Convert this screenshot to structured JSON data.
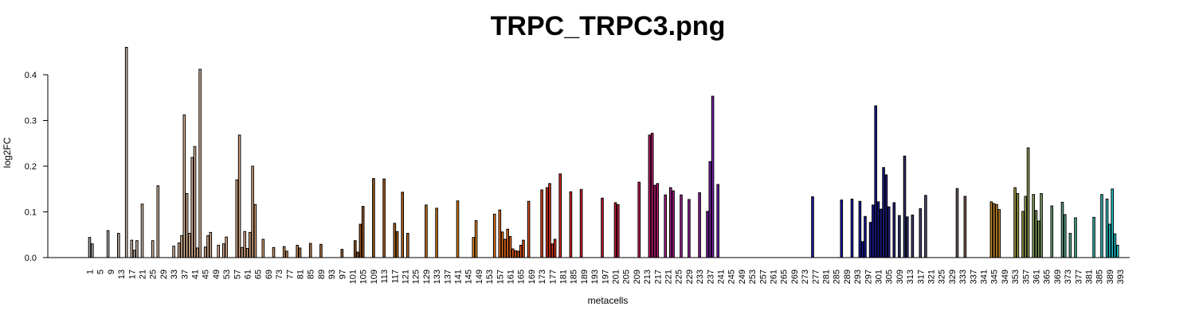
{
  "chart_data": {
    "type": "bar",
    "title": "TRPC_TRPC3.png",
    "xlabel": "metacells",
    "ylabel": "log2FC",
    "ylim": [
      0,
      0.46
    ],
    "yticks": [
      0.0,
      0.1,
      0.2,
      0.3,
      0.4
    ],
    "ytick_labels": [
      "0.0",
      "0.1",
      "0.2",
      "0.3",
      "0.4"
    ],
    "n_bars": 395,
    "xtick_labels": [
      "1",
      "5",
      "9",
      "13",
      "17",
      "21",
      "25",
      "29",
      "33",
      "37",
      "41",
      "45",
      "49",
      "53",
      "57",
      "61",
      "65",
      "69",
      "73",
      "77",
      "81",
      "85",
      "89",
      "93",
      "97",
      "101",
      "105",
      "109",
      "113",
      "117",
      "121",
      "125",
      "129",
      "133",
      "137",
      "141",
      "145",
      "149",
      "153",
      "157",
      "161",
      "165",
      "169",
      "173",
      "177",
      "181",
      "185",
      "189",
      "193",
      "197",
      "201",
      "205",
      "209",
      "213",
      "217",
      "221",
      "225",
      "229",
      "233",
      "237",
      "241",
      "245",
      "249",
      "253",
      "257",
      "261",
      "265",
      "269",
      "273",
      "277",
      "281",
      "285",
      "289",
      "293",
      "297",
      "301",
      "305",
      "309",
      "313",
      "317",
      "321",
      "325",
      "329",
      "333",
      "337",
      "341",
      "345",
      "349",
      "353",
      "357",
      "361",
      "365",
      "369",
      "373",
      "377",
      "381",
      "385",
      "389",
      "393"
    ],
    "grid": false,
    "legend": "none",
    "bars": [
      {
        "x": 1,
        "value": 0.044,
        "color": "#a8a8a8"
      },
      {
        "x": 2,
        "value": 0.03,
        "color": "#a8a8a8"
      },
      {
        "x": 8,
        "value": 0.059,
        "color": "#b0aaa8"
      },
      {
        "x": 12,
        "value": 0.053,
        "color": "#b8aca4"
      },
      {
        "x": 15,
        "value": 0.46,
        "color": "#c8b8aa"
      },
      {
        "x": 17,
        "value": 0.038,
        "color": "#ccb8a8"
      },
      {
        "x": 18,
        "value": 0.016,
        "color": "#ccb8a8"
      },
      {
        "x": 19,
        "value": 0.037,
        "color": "#ccb8a8"
      },
      {
        "x": 21,
        "value": 0.117,
        "color": "#d0b8a0"
      },
      {
        "x": 25,
        "value": 0.037,
        "color": "#d4b8a0"
      },
      {
        "x": 27,
        "value": 0.157,
        "color": "#d8b8a0"
      },
      {
        "x": 33,
        "value": 0.025,
        "color": "#dcb89c"
      },
      {
        "x": 35,
        "value": 0.032,
        "color": "#deb898"
      },
      {
        "x": 36,
        "value": 0.048,
        "color": "#deb898"
      },
      {
        "x": 37,
        "value": 0.312,
        "color": "#deb898"
      },
      {
        "x": 38,
        "value": 0.14,
        "color": "#deb898"
      },
      {
        "x": 39,
        "value": 0.053,
        "color": "#deb898"
      },
      {
        "x": 40,
        "value": 0.219,
        "color": "#deb494"
      },
      {
        "x": 41,
        "value": 0.243,
        "color": "#deb494"
      },
      {
        "x": 42,
        "value": 0.021,
        "color": "#deb494"
      },
      {
        "x": 43,
        "value": 0.412,
        "color": "#deb494"
      },
      {
        "x": 45,
        "value": 0.023,
        "color": "#deb494"
      },
      {
        "x": 46,
        "value": 0.048,
        "color": "#deb494"
      },
      {
        "x": 47,
        "value": 0.055,
        "color": "#deb494"
      },
      {
        "x": 50,
        "value": 0.027,
        "color": "#deb090"
      },
      {
        "x": 52,
        "value": 0.03,
        "color": "#deb090"
      },
      {
        "x": 53,
        "value": 0.045,
        "color": "#deb090"
      },
      {
        "x": 57,
        "value": 0.17,
        "color": "#dcaa88"
      },
      {
        "x": 58,
        "value": 0.268,
        "color": "#dcaa88"
      },
      {
        "x": 59,
        "value": 0.022,
        "color": "#dcaa88"
      },
      {
        "x": 60,
        "value": 0.057,
        "color": "#dcaa88"
      },
      {
        "x": 61,
        "value": 0.02,
        "color": "#dcaa88"
      },
      {
        "x": 62,
        "value": 0.055,
        "color": "#dcaa88"
      },
      {
        "x": 63,
        "value": 0.2,
        "color": "#d8a47e"
      },
      {
        "x": 64,
        "value": 0.116,
        "color": "#d8a47e"
      },
      {
        "x": 67,
        "value": 0.04,
        "color": "#d4a076"
      },
      {
        "x": 71,
        "value": 0.022,
        "color": "#cc9466"
      },
      {
        "x": 75,
        "value": 0.024,
        "color": "#c88e5e"
      },
      {
        "x": 76,
        "value": 0.014,
        "color": "#c88e5e"
      },
      {
        "x": 80,
        "value": 0.027,
        "color": "#c08656"
      },
      {
        "x": 81,
        "value": 0.021,
        "color": "#c08656"
      },
      {
        "x": 85,
        "value": 0.031,
        "color": "#b87a48"
      },
      {
        "x": 89,
        "value": 0.029,
        "color": "#b07040"
      },
      {
        "x": 97,
        "value": 0.018,
        "color": "#a06030"
      },
      {
        "x": 102,
        "value": 0.037,
        "color": "#98541e"
      },
      {
        "x": 103,
        "value": 0.012,
        "color": "#98541e"
      },
      {
        "x": 104,
        "value": 0.073,
        "color": "#98541e"
      },
      {
        "x": 105,
        "value": 0.112,
        "color": "#98541e"
      },
      {
        "x": 109,
        "value": 0.173,
        "color": "#a05a1e"
      },
      {
        "x": 113,
        "value": 0.172,
        "color": "#a85e1c"
      },
      {
        "x": 117,
        "value": 0.075,
        "color": "#b0641c"
      },
      {
        "x": 118,
        "value": 0.057,
        "color": "#b0641c"
      },
      {
        "x": 120,
        "value": 0.143,
        "color": "#b4661c"
      },
      {
        "x": 122,
        "value": 0.053,
        "color": "#b8681c"
      },
      {
        "x": 129,
        "value": 0.115,
        "color": "#c4721c"
      },
      {
        "x": 133,
        "value": 0.108,
        "color": "#cc781a"
      },
      {
        "x": 141,
        "value": 0.124,
        "color": "#d8801a"
      },
      {
        "x": 147,
        "value": 0.044,
        "color": "#e4881a"
      },
      {
        "x": 148,
        "value": 0.081,
        "color": "#e4881a"
      },
      {
        "x": 155,
        "value": 0.095,
        "color": "#e8761c"
      },
      {
        "x": 157,
        "value": 0.104,
        "color": "#e8701c"
      },
      {
        "x": 158,
        "value": 0.056,
        "color": "#e8701c"
      },
      {
        "x": 159,
        "value": 0.04,
        "color": "#e86a1c"
      },
      {
        "x": 160,
        "value": 0.062,
        "color": "#e86a1c"
      },
      {
        "x": 161,
        "value": 0.046,
        "color": "#e8641c"
      },
      {
        "x": 162,
        "value": 0.019,
        "color": "#e8641c"
      },
      {
        "x": 163,
        "value": 0.015,
        "color": "#e45e1c"
      },
      {
        "x": 164,
        "value": 0.014,
        "color": "#e45e1c"
      },
      {
        "x": 165,
        "value": 0.027,
        "color": "#e4581c"
      },
      {
        "x": 166,
        "value": 0.038,
        "color": "#e4581c"
      },
      {
        "x": 168,
        "value": 0.123,
        "color": "#e0521c"
      },
      {
        "x": 173,
        "value": 0.148,
        "color": "#e0401c"
      },
      {
        "x": 175,
        "value": 0.153,
        "color": "#e0381c"
      },
      {
        "x": 176,
        "value": 0.162,
        "color": "#e0381c"
      },
      {
        "x": 177,
        "value": 0.03,
        "color": "#e0321c"
      },
      {
        "x": 178,
        "value": 0.04,
        "color": "#e0321c"
      },
      {
        "x": 180,
        "value": 0.183,
        "color": "#dc2a1c"
      },
      {
        "x": 184,
        "value": 0.144,
        "color": "#d82420"
      },
      {
        "x": 188,
        "value": 0.149,
        "color": "#d41e24"
      },
      {
        "x": 196,
        "value": 0.13,
        "color": "#cc1a2c"
      },
      {
        "x": 201,
        "value": 0.12,
        "color": "#c41a38"
      },
      {
        "x": 202,
        "value": 0.116,
        "color": "#c41a38"
      },
      {
        "x": 210,
        "value": 0.165,
        "color": "#c01a50"
      },
      {
        "x": 214,
        "value": 0.268,
        "color": "#b81a68"
      },
      {
        "x": 215,
        "value": 0.272,
        "color": "#b81a68"
      },
      {
        "x": 216,
        "value": 0.158,
        "color": "#b41a70"
      },
      {
        "x": 217,
        "value": 0.162,
        "color": "#b41a70"
      },
      {
        "x": 220,
        "value": 0.137,
        "color": "#a81a80"
      },
      {
        "x": 222,
        "value": 0.153,
        "color": "#a01c88"
      },
      {
        "x": 223,
        "value": 0.146,
        "color": "#a01c88"
      },
      {
        "x": 226,
        "value": 0.137,
        "color": "#981e90"
      },
      {
        "x": 229,
        "value": 0.127,
        "color": "#901e98"
      },
      {
        "x": 233,
        "value": 0.142,
        "color": "#8820a0"
      },
      {
        "x": 236,
        "value": 0.101,
        "color": "#7e20a8"
      },
      {
        "x": 237,
        "value": 0.21,
        "color": "#7e20a8"
      },
      {
        "x": 238,
        "value": 0.353,
        "color": "#7a20b0"
      },
      {
        "x": 240,
        "value": 0.16,
        "color": "#7420b8"
      },
      {
        "x": 276,
        "value": 0.133,
        "color": "#1c20b0"
      },
      {
        "x": 287,
        "value": 0.126,
        "color": "#1818a8"
      },
      {
        "x": 291,
        "value": 0.128,
        "color": "#1818a8"
      },
      {
        "x": 294,
        "value": 0.123,
        "color": "#1818a0"
      },
      {
        "x": 295,
        "value": 0.035,
        "color": "#1818a0"
      },
      {
        "x": 296,
        "value": 0.09,
        "color": "#1818a0"
      },
      {
        "x": 298,
        "value": 0.077,
        "color": "#181898"
      },
      {
        "x": 299,
        "value": 0.115,
        "color": "#181898"
      },
      {
        "x": 300,
        "value": 0.332,
        "color": "#1a1a90"
      },
      {
        "x": 301,
        "value": 0.122,
        "color": "#1a1a90"
      },
      {
        "x": 302,
        "value": 0.106,
        "color": "#1c1c88"
      },
      {
        "x": 303,
        "value": 0.197,
        "color": "#1c1c88"
      },
      {
        "x": 304,
        "value": 0.181,
        "color": "#1e1e80"
      },
      {
        "x": 305,
        "value": 0.111,
        "color": "#1e1e80"
      },
      {
        "x": 307,
        "value": 0.12,
        "color": "#22227a"
      },
      {
        "x": 309,
        "value": 0.092,
        "color": "#282874"
      },
      {
        "x": 311,
        "value": 0.222,
        "color": "#30306e"
      },
      {
        "x": 312,
        "value": 0.089,
        "color": "#303070"
      },
      {
        "x": 314,
        "value": 0.093,
        "color": "#383870"
      },
      {
        "x": 317,
        "value": 0.107,
        "color": "#444470"
      },
      {
        "x": 319,
        "value": 0.136,
        "color": "#504c6c"
      },
      {
        "x": 331,
        "value": 0.151,
        "color": "#706060"
      },
      {
        "x": 334,
        "value": 0.134,
        "color": "#806050"
      },
      {
        "x": 344,
        "value": 0.122,
        "color": "#c88a28"
      },
      {
        "x": 345,
        "value": 0.118,
        "color": "#c88a28"
      },
      {
        "x": 346,
        "value": 0.116,
        "color": "#c88a28"
      },
      {
        "x": 347,
        "value": 0.105,
        "color": "#c88a28"
      },
      {
        "x": 353,
        "value": 0.153,
        "color": "#a8a040"
      },
      {
        "x": 354,
        "value": 0.14,
        "color": "#a0a044"
      },
      {
        "x": 356,
        "value": 0.101,
        "color": "#98a04c"
      },
      {
        "x": 357,
        "value": 0.134,
        "color": "#94a050"
      },
      {
        "x": 358,
        "value": 0.24,
        "color": "#90a054"
      },
      {
        "x": 360,
        "value": 0.138,
        "color": "#88a05c"
      },
      {
        "x": 361,
        "value": 0.103,
        "color": "#84a060"
      },
      {
        "x": 362,
        "value": 0.08,
        "color": "#80a064"
      },
      {
        "x": 363,
        "value": 0.14,
        "color": "#7ca068"
      },
      {
        "x": 367,
        "value": 0.113,
        "color": "#6ca078"
      },
      {
        "x": 371,
        "value": 0.121,
        "color": "#5ca888"
      },
      {
        "x": 372,
        "value": 0.094,
        "color": "#5aa88a"
      },
      {
        "x": 374,
        "value": 0.053,
        "color": "#52ac90"
      },
      {
        "x": 376,
        "value": 0.087,
        "color": "#4cb098"
      },
      {
        "x": 383,
        "value": 0.088,
        "color": "#38b8b0"
      },
      {
        "x": 386,
        "value": 0.138,
        "color": "#30bcbc"
      },
      {
        "x": 388,
        "value": 0.128,
        "color": "#28c0c4"
      },
      {
        "x": 389,
        "value": 0.073,
        "color": "#24c4c8"
      },
      {
        "x": 390,
        "value": 0.15,
        "color": "#20c8cc"
      },
      {
        "x": 391,
        "value": 0.052,
        "color": "#20c8d0"
      },
      {
        "x": 392,
        "value": 0.027,
        "color": "#1cccd4"
      }
    ]
  }
}
